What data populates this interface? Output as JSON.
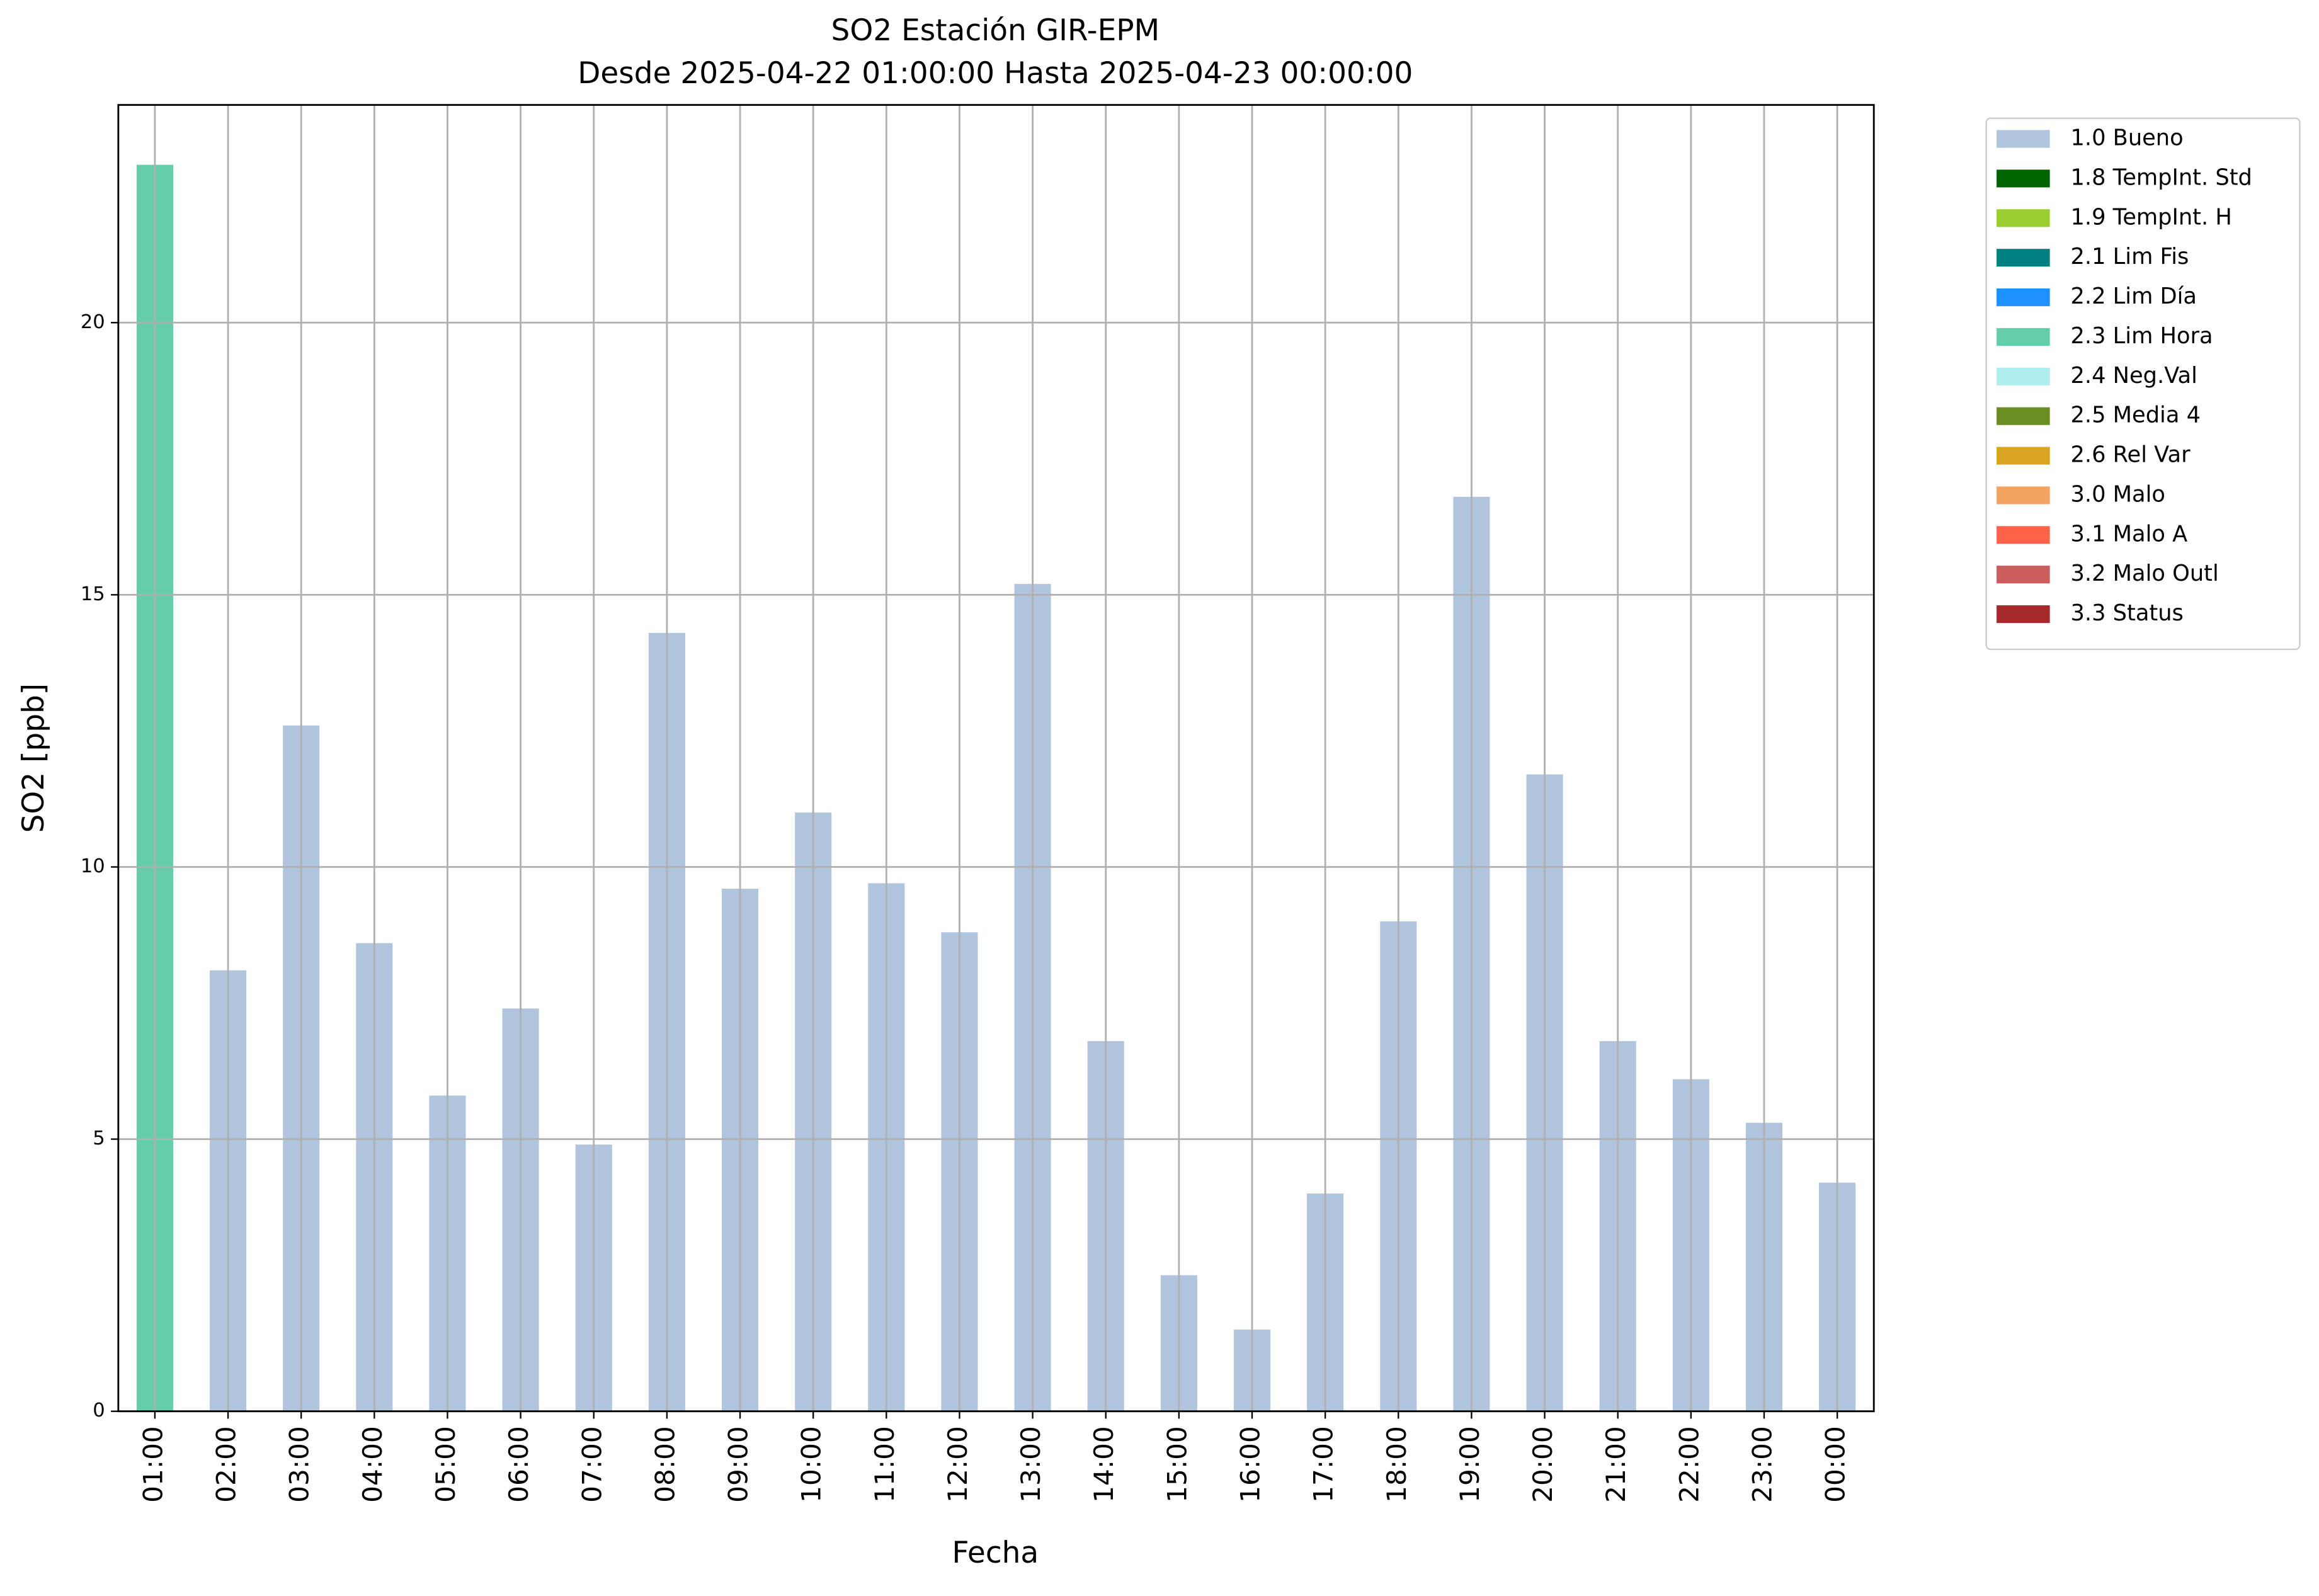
{
  "chart_data": {
    "type": "bar",
    "stacked": true,
    "title": "SO2 Estación GIR-EPM",
    "subtitle": "Desde 2025-04-22 01:00:00 Hasta 2025-04-23 00:00:00",
    "x_label": "Fecha",
    "y_label": "SO2 [ppb]",
    "categories": [
      "01:00",
      "02:00",
      "03:00",
      "04:00",
      "05:00",
      "06:00",
      "07:00",
      "08:00",
      "09:00",
      "10:00",
      "11:00",
      "12:00",
      "13:00",
      "14:00",
      "15:00",
      "16:00",
      "17:00",
      "18:00",
      "19:00",
      "20:00",
      "21:00",
      "22:00",
      "23:00",
      "00:00"
    ],
    "series": [
      {
        "name": "1.0 Bueno",
        "color": "#b0c4de",
        "values": [
          null,
          8.1,
          12.6,
          8.6,
          5.8,
          7.4,
          4.9,
          14.3,
          9.6,
          11.0,
          9.7,
          8.8,
          15.2,
          6.8,
          2.5,
          1.5,
          4.0,
          9.0,
          16.8,
          11.7,
          6.8,
          6.1,
          5.3,
          4.2
        ]
      },
      {
        "name": "1.8 TempInt. Std",
        "color": "#006400",
        "values": [
          null,
          null,
          null,
          null,
          null,
          null,
          null,
          null,
          null,
          null,
          null,
          null,
          null,
          null,
          null,
          null,
          null,
          null,
          null,
          null,
          null,
          null,
          null,
          null
        ]
      },
      {
        "name": "1.9 TempInt. H",
        "color": "#9acd32",
        "values": [
          null,
          null,
          null,
          null,
          null,
          null,
          null,
          null,
          null,
          null,
          null,
          null,
          null,
          null,
          null,
          null,
          null,
          null,
          null,
          null,
          null,
          null,
          null,
          null
        ]
      },
      {
        "name": "2.1 Lim Fis",
        "color": "#008080",
        "values": [
          null,
          null,
          null,
          null,
          null,
          null,
          null,
          null,
          null,
          null,
          null,
          null,
          null,
          null,
          null,
          null,
          null,
          null,
          null,
          null,
          null,
          null,
          null,
          null
        ]
      },
      {
        "name": "2.2 Lim Día",
        "color": "#1e90ff",
        "values": [
          null,
          null,
          null,
          null,
          null,
          null,
          null,
          null,
          null,
          null,
          null,
          null,
          null,
          null,
          null,
          null,
          null,
          null,
          null,
          null,
          null,
          null,
          null,
          null
        ]
      },
      {
        "name": "2.3 Lim Hora",
        "color": "#66cdaa",
        "values": [
          22.9,
          null,
          null,
          null,
          null,
          null,
          null,
          null,
          null,
          null,
          null,
          null,
          null,
          null,
          null,
          null,
          null,
          null,
          null,
          null,
          null,
          null,
          null,
          null
        ]
      },
      {
        "name": "2.4 Neg.Val",
        "color": "#afeeee",
        "values": [
          null,
          null,
          null,
          null,
          null,
          null,
          null,
          null,
          null,
          null,
          null,
          null,
          null,
          null,
          null,
          null,
          null,
          null,
          null,
          null,
          null,
          null,
          null,
          null
        ]
      },
      {
        "name": "2.5 Media 4",
        "color": "#6b8e23",
        "values": [
          null,
          null,
          null,
          null,
          null,
          null,
          null,
          null,
          null,
          null,
          null,
          null,
          null,
          null,
          null,
          null,
          null,
          null,
          null,
          null,
          null,
          null,
          null,
          null
        ]
      },
      {
        "name": "2.6 Rel Var",
        "color": "#daa520",
        "values": [
          null,
          null,
          null,
          null,
          null,
          null,
          null,
          null,
          null,
          null,
          null,
          null,
          null,
          null,
          null,
          null,
          null,
          null,
          null,
          null,
          null,
          null,
          null,
          null
        ]
      },
      {
        "name": "3.0 Malo",
        "color": "#f4a460",
        "values": [
          null,
          null,
          null,
          null,
          null,
          null,
          null,
          null,
          null,
          null,
          null,
          null,
          null,
          null,
          null,
          null,
          null,
          null,
          null,
          null,
          null,
          null,
          null,
          null
        ]
      },
      {
        "name": "3.1 Malo A",
        "color": "#ff6347",
        "values": [
          null,
          null,
          null,
          null,
          null,
          null,
          null,
          null,
          null,
          null,
          null,
          null,
          null,
          null,
          null,
          null,
          null,
          null,
          null,
          null,
          null,
          null,
          null,
          null
        ]
      },
      {
        "name": "3.2 Malo Outl",
        "color": "#cd5c5c",
        "values": [
          null,
          null,
          null,
          null,
          null,
          null,
          null,
          null,
          null,
          null,
          null,
          null,
          null,
          null,
          null,
          null,
          null,
          null,
          null,
          null,
          null,
          null,
          null,
          null
        ]
      },
      {
        "name": "3.3 Status",
        "color": "#a52a2a",
        "values": [
          null,
          null,
          null,
          null,
          null,
          null,
          null,
          null,
          null,
          null,
          null,
          null,
          null,
          null,
          null,
          null,
          null,
          null,
          null,
          null,
          null,
          null,
          null,
          null
        ]
      }
    ],
    "ylim": [
      0,
      24
    ],
    "yticks": [
      0,
      5,
      10,
      15,
      20
    ],
    "grid": true,
    "legend": "outside upper right"
  }
}
